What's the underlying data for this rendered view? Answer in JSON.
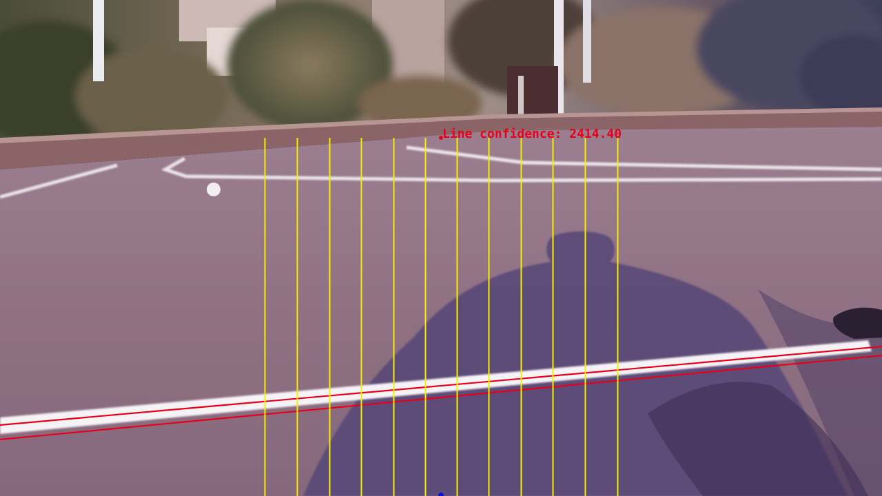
{
  "overlay": {
    "confidence_label": "Line confidence: 2414.40",
    "line_color": "#e8001a",
    "scan_color": "#f5f000",
    "marker_color": "#1010e0"
  },
  "scene": {
    "sky_background": "#6c6a7c",
    "court_color": "#8e7182",
    "court_far_color": "#9a7e8f",
    "wall_color": "#8a6466",
    "shadow_color": "#5a4a78",
    "foliage_dark": "#39402d",
    "foliage_light": "#7a6a52",
    "court_line_color": "#f3eef2"
  }
}
